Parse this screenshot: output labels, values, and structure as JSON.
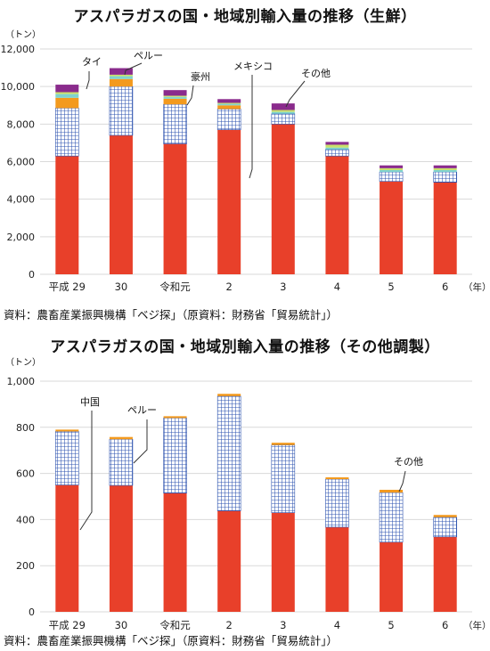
{
  "chart_data": [
    {
      "type": "bar",
      "title": "アスパラガスの国・地域別輸入量の推移（生鮮）",
      "ylabel": "（トン）",
      "xlabel": "（年）",
      "categories": [
        "平成 29",
        "30",
        "令和元",
        "2",
        "3",
        "4",
        "5",
        "6"
      ],
      "ylim": [
        0,
        12000
      ],
      "yticks": [
        "0",
        "2,000",
        "4,000",
        "6,000",
        "8,000",
        "10,000",
        "12,000"
      ],
      "stacked": true,
      "series": [
        {
          "name": "メキシコ",
          "color": "#e8402a",
          "pattern": "solid",
          "values": [
            6300,
            7400,
            6950,
            7700,
            8000,
            6300,
            4950,
            4900
          ]
        },
        {
          "name": "豪州",
          "color": "#3a5fb8",
          "pattern": "grid",
          "values": [
            2550,
            2600,
            2100,
            1100,
            550,
            350,
            500,
            550
          ]
        },
        {
          "name": "",
          "color": "#f39a1e",
          "pattern": "solid",
          "values": [
            550,
            400,
            300,
            200,
            0,
            0,
            0,
            0
          ]
        },
        {
          "name": "タイ",
          "color": "#7fd3cf",
          "pattern": "solid",
          "values": [
            200,
            150,
            100,
            80,
            100,
            100,
            100,
            100
          ]
        },
        {
          "name": "ペルー",
          "color": "#c9e06a",
          "pattern": "solid",
          "values": [
            100,
            80,
            60,
            50,
            100,
            150,
            100,
            100
          ]
        },
        {
          "name": "その他",
          "color": "#8a2b8c",
          "pattern": "solid",
          "values": [
            400,
            350,
            300,
            200,
            350,
            150,
            150,
            150
          ]
        }
      ],
      "annotations": [
        "タイ",
        "ペルー",
        "豪州",
        "メキシコ",
        "その他"
      ],
      "source": "資料：農畜産業振興機構「ベジ探」（原資料：財務省「貿易統計」）"
    },
    {
      "type": "bar",
      "title": "アスパラガスの国・地域別輸入量の推移（その他調製）",
      "ylabel": "（トン）",
      "xlabel": "（年）",
      "categories": [
        "平成 29",
        "30",
        "令和元",
        "2",
        "3",
        "4",
        "5",
        "6"
      ],
      "ylim": [
        0,
        1000
      ],
      "yticks": [
        "0",
        "200",
        "400",
        "600",
        "800",
        "1,000"
      ],
      "stacked": true,
      "series": [
        {
          "name": "中国",
          "color": "#e8402a",
          "pattern": "solid",
          "values": [
            550,
            548,
            515,
            438,
            430,
            367,
            302,
            325
          ]
        },
        {
          "name": "ペルー",
          "color": "#3a5fb8",
          "pattern": "grid",
          "values": [
            232,
            200,
            325,
            497,
            293,
            208,
            215,
            85
          ]
        },
        {
          "name": "その他",
          "color": "#f39a1e",
          "pattern": "solid",
          "values": [
            8,
            10,
            8,
            10,
            10,
            8,
            12,
            10
          ]
        }
      ],
      "annotations": [
        "中国",
        "ペルー",
        "その他"
      ],
      "source": "資料：農畜産業振興機構「ベジ探」（原資料：財務省「貿易統計」）"
    }
  ]
}
